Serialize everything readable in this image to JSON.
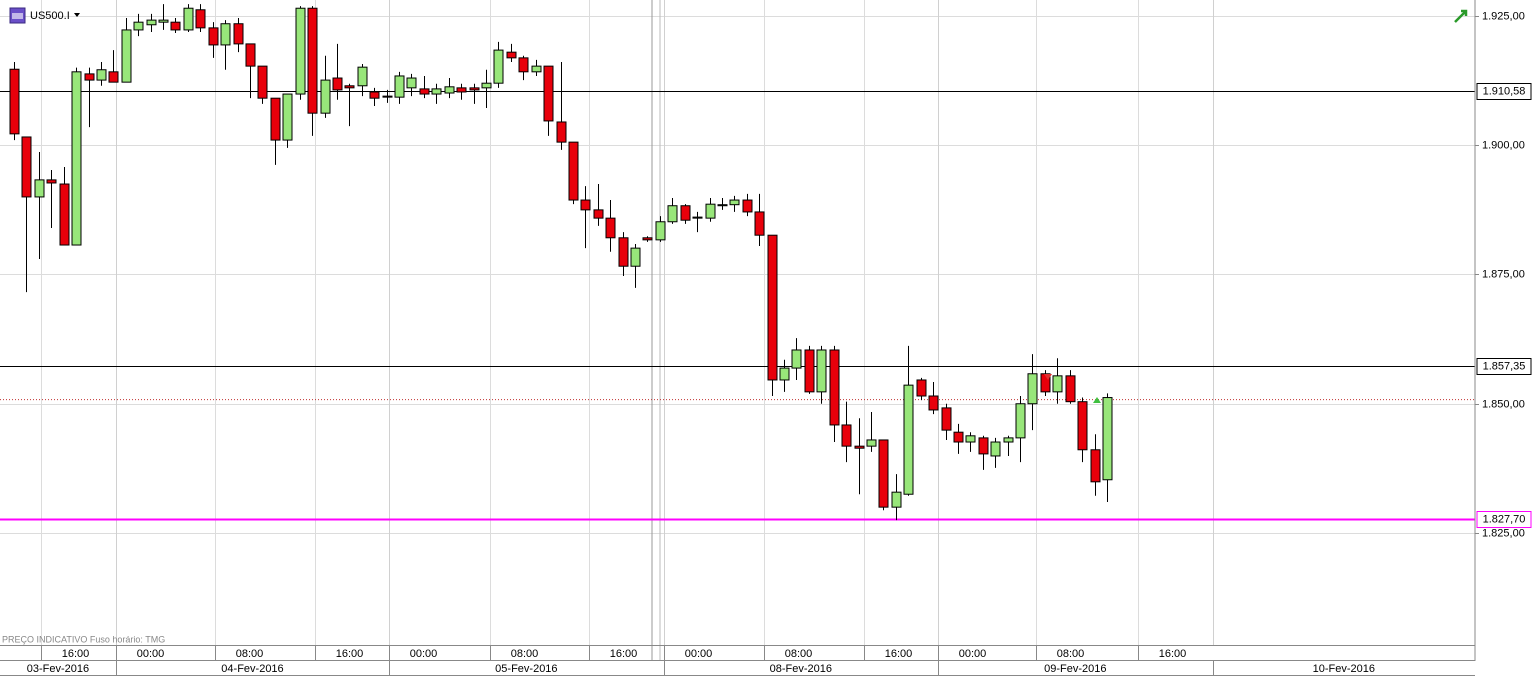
{
  "header": {
    "symbol": "US500.I",
    "footer": "PREÇO INDICATIVO   Fuso horário: TMG"
  },
  "chart_data": {
    "type": "candlestick",
    "up_color": "#98e67a",
    "down_color": "#e8000b",
    "open": [
      1914.7,
      1901.6,
      1890.0,
      1893.3,
      1892.5,
      1880.7,
      1913.8,
      1912.6,
      1914.2,
      1912.2,
      1922.3,
      1923.3,
      1923.8,
      1923.8,
      1922.3,
      1926.2,
      1922.7,
      1919.4,
      1923.5,
      1919.6,
      1915.3,
      1909.1,
      1901.0,
      1909.9,
      1926.5,
      1906.2,
      1913.0,
      1911.5,
      1911.5,
      1910.3,
      1909.5,
      1909.3,
      1911.1,
      1910.9,
      1909.9,
      1910.1,
      1911.1,
      1911.1,
      1911.1,
      1912.0,
      1918.0,
      1916.9,
      1914.2,
      1915.3,
      1904.5,
      1900.6,
      1889.4,
      1887.5,
      1885.9,
      1882.1,
      1876.6,
      1882.1,
      1881.7,
      1885.2,
      1888.3,
      1885.9,
      1885.9,
      1888.3,
      1888.5,
      1889.4,
      1887.1,
      1882.6,
      1854.6,
      1856.9,
      1860.4,
      1852.3,
      1860.4,
      1845.9,
      1841.8,
      1841.8,
      1843.0,
      1830.0,
      1832.5,
      1854.6,
      1851.5,
      1849.2,
      1844.5,
      1842.6,
      1843.4,
      1839.9,
      1842.6,
      1843.4,
      1850.0,
      1855.8,
      1852.3,
      1855.4,
      1850.4,
      1841.1,
      1835.3
    ],
    "high": [
      1916.1,
      1901.6,
      1898.7,
      1895.2,
      1895.8,
      1915.0,
      1915.0,
      1916.1,
      1918.4,
      1924.6,
      1925.4,
      1925.4,
      1927.3,
      1924.6,
      1927.3,
      1927.3,
      1923.8,
      1924.2,
      1924.6,
      1919.6,
      1915.3,
      1909.1,
      1909.9,
      1926.9,
      1926.9,
      1917.3,
      1919.6,
      1911.9,
      1915.7,
      1911.1,
      1910.7,
      1914.2,
      1913.8,
      1913.4,
      1911.9,
      1913.0,
      1911.9,
      1911.9,
      1914.6,
      1920.0,
      1919.6,
      1917.3,
      1916.5,
      1915.3,
      1916.1,
      1900.6,
      1892.1,
      1892.5,
      1889.4,
      1883.2,
      1880.9,
      1882.4,
      1886.3,
      1889.8,
      1888.6,
      1887.1,
      1889.8,
      1889.8,
      1890.2,
      1890.6,
      1890.6,
      1882.6,
      1858.5,
      1862.7,
      1861.2,
      1861.2,
      1861.2,
      1850.4,
      1847.2,
      1848.4,
      1843.0,
      1836.4,
      1861.2,
      1855.0,
      1854.2,
      1850.0,
      1846.1,
      1844.5,
      1843.8,
      1843.4,
      1843.8,
      1851.5,
      1859.6,
      1856.5,
      1858.8,
      1856.5,
      1851.2,
      1844.1,
      1852.0
    ],
    "low": [
      1901.0,
      1871.6,
      1878.0,
      1884.0,
      1880.7,
      1880.7,
      1903.5,
      1911.5,
      1912.2,
      1912.2,
      1921.1,
      1921.9,
      1922.3,
      1921.7,
      1921.9,
      1921.9,
      1916.9,
      1914.6,
      1918.0,
      1909.1,
      1908.0,
      1896.2,
      1899.5,
      1908.8,
      1901.8,
      1905.3,
      1908.8,
      1903.7,
      1909.5,
      1907.6,
      1908.2,
      1908.0,
      1909.5,
      1909.1,
      1908.0,
      1909.1,
      1908.8,
      1908.0,
      1907.2,
      1911.1,
      1916.1,
      1912.6,
      1913.4,
      1901.8,
      1899.1,
      1888.6,
      1880.1,
      1884.4,
      1879.4,
      1874.7,
      1872.4,
      1881.3,
      1881.3,
      1884.8,
      1884.8,
      1883.2,
      1885.2,
      1887.5,
      1887.1,
      1886.3,
      1880.5,
      1851.5,
      1852.3,
      1854.6,
      1851.9,
      1850.0,
      1842.6,
      1838.7,
      1832.5,
      1840.7,
      1829.4,
      1827.5,
      1832.2,
      1850.7,
      1848.0,
      1843.0,
      1840.3,
      1840.7,
      1837.2,
      1837.6,
      1839.9,
      1838.7,
      1844.9,
      1851.5,
      1850.0,
      1850.0,
      1838.7,
      1832.2,
      1831.0
    ],
    "close": [
      1902.2,
      1890.0,
      1893.3,
      1892.7,
      1880.7,
      1914.2,
      1912.6,
      1914.6,
      1912.2,
      1922.3,
      1923.8,
      1924.2,
      1924.2,
      1922.3,
      1926.5,
      1922.7,
      1919.4,
      1923.5,
      1919.6,
      1915.3,
      1909.1,
      1901.0,
      1909.9,
      1926.5,
      1906.2,
      1912.6,
      1910.7,
      1911.1,
      1915.1,
      1909.1,
      1909.3,
      1913.4,
      1913.0,
      1909.9,
      1910.9,
      1911.3,
      1910.3,
      1910.7,
      1912.0,
      1918.4,
      1916.9,
      1914.2,
      1915.3,
      1904.7,
      1900.6,
      1889.4,
      1887.5,
      1885.9,
      1882.1,
      1876.6,
      1880.1,
      1881.7,
      1885.2,
      1888.3,
      1885.5,
      1886.1,
      1888.6,
      1888.5,
      1889.4,
      1887.1,
      1882.6,
      1854.6,
      1856.9,
      1860.4,
      1852.3,
      1860.4,
      1845.9,
      1841.8,
      1841.4,
      1843.0,
      1830.0,
      1832.9,
      1853.6,
      1851.5,
      1848.8,
      1844.9,
      1842.6,
      1843.8,
      1840.3,
      1842.6,
      1843.4,
      1850.0,
      1855.8,
      1852.3,
      1855.4,
      1850.4,
      1841.1,
      1834.9,
      1851.2
    ],
    "xlim": [
      -1.13,
      117.63
    ],
    "xticks": [
      {
        "value": 2.2,
        "label": "16:00"
      },
      {
        "value": 8.2,
        "label": "00:00"
      },
      {
        "value": 16.2,
        "label": "08:00"
      },
      {
        "value": 24.2,
        "label": "16:00"
      },
      {
        "value": 30.2,
        "label": "00:00"
      },
      {
        "value": 38.3,
        "label": "08:00"
      },
      {
        "value": 46.3,
        "label": "16:00"
      },
      {
        "value": 52.3,
        "label": "00:00"
      },
      {
        "value": 60.4,
        "label": "08:00"
      },
      {
        "value": 68.4,
        "label": "16:00"
      },
      {
        "value": 74.4,
        "label": "00:00"
      },
      {
        "value": 82.3,
        "label": "08:00"
      },
      {
        "value": 90.5,
        "label": "16:00"
      }
    ],
    "date_bounds": [
      8.2,
      30.2,
      52.3,
      74.4,
      96.5
    ],
    "dates": [
      "03-Fev-2016",
      "04-Fev-2016",
      "05-Fev-2016",
      "08-Fev-2016",
      "09-Fev-2016",
      "10-Fev-2016"
    ],
    "ylim": [
      1803.34,
      1928.09
    ],
    "yticks": [
      {
        "value": 1925,
        "label": "1.925,00"
      },
      {
        "value": 1900,
        "label": "1.900,00"
      },
      {
        "value": 1875,
        "label": "1.875,00"
      },
      {
        "value": 1850,
        "label": "1.850,00"
      },
      {
        "value": 1825,
        "label": "1.825,00"
      }
    ],
    "grid": true,
    "levels": [
      {
        "value": 1910.58,
        "label": "1.910,58",
        "color": "#000000"
      },
      {
        "value": 1857.35,
        "label": "1.857,35",
        "color": "#000000"
      },
      {
        "value": 1827.7,
        "label": "1.827,70",
        "color": "#ff00ff"
      }
    ],
    "current_price": 1850.8
  }
}
